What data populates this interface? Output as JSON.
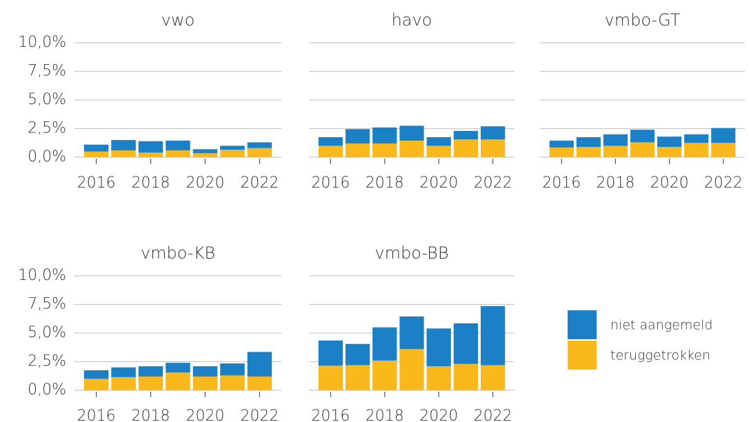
{
  "chart_data": [
    {
      "type": "bar",
      "stacked": true,
      "title": "vwo",
      "x": [
        2016,
        2017,
        2018,
        2019,
        2020,
        2021,
        2022
      ],
      "series": [
        {
          "name": "teruggetrokken",
          "color": "#f9b81b",
          "values": [
            0.5,
            0.6,
            0.4,
            0.6,
            0.35,
            0.65,
            0.8
          ]
        },
        {
          "name": "niet aangemeld",
          "color": "#1b80c6",
          "values": [
            0.6,
            0.9,
            1.0,
            0.85,
            0.35,
            0.35,
            0.5
          ]
        }
      ],
      "xlim": [
        2015.2,
        2022.8
      ],
      "xticks": [
        2016,
        2018,
        2020,
        2022
      ],
      "ylim": [
        0,
        10
      ],
      "yticks": [
        {
          "value": 0,
          "label": "0,0%"
        },
        {
          "value": 2.5,
          "label": "2,5%"
        },
        {
          "value": 5,
          "label": "5,0%"
        },
        {
          "value": 7.5,
          "label": "7,5%"
        },
        {
          "value": 10,
          "label": "10,0%"
        }
      ],
      "grid": true
    },
    {
      "type": "bar",
      "stacked": true,
      "title": "havo",
      "x": [
        2016,
        2017,
        2018,
        2019,
        2020,
        2021,
        2022
      ],
      "series": [
        {
          "name": "teruggetrokken",
          "color": "#f9b81b",
          "values": [
            1.0,
            1.2,
            1.2,
            1.45,
            1.0,
            1.55,
            1.55
          ]
        },
        {
          "name": "niet aangemeld",
          "color": "#1b80c6",
          "values": [
            0.75,
            1.25,
            1.4,
            1.3,
            0.75,
            0.75,
            1.15
          ]
        }
      ],
      "xlim": [
        2015.2,
        2022.8
      ],
      "xticks": [
        2016,
        2018,
        2020,
        2022
      ],
      "ylim": [
        0,
        10
      ],
      "yticks": [
        0,
        2.5,
        5,
        7.5,
        10
      ],
      "grid": true
    },
    {
      "type": "bar",
      "stacked": true,
      "title": "vmbo-GT",
      "x": [
        2016,
        2017,
        2018,
        2019,
        2020,
        2021,
        2022
      ],
      "series": [
        {
          "name": "teruggetrokken",
          "color": "#f9b81b",
          "values": [
            0.85,
            0.9,
            1.0,
            1.3,
            0.9,
            1.25,
            1.25
          ]
        },
        {
          "name": "niet aangemeld",
          "color": "#1b80c6",
          "values": [
            0.6,
            0.85,
            1.0,
            1.1,
            0.9,
            0.75,
            1.3
          ]
        }
      ],
      "xlim": [
        2015.2,
        2022.8
      ],
      "xticks": [
        2016,
        2018,
        2020,
        2022
      ],
      "ylim": [
        0,
        10
      ],
      "yticks": [
        0,
        2.5,
        5,
        7.5,
        10
      ],
      "grid": true
    },
    {
      "type": "bar",
      "stacked": true,
      "title": "vmbo-KB",
      "x": [
        2016,
        2017,
        2018,
        2019,
        2020,
        2021,
        2022
      ],
      "series": [
        {
          "name": "teruggetrokken",
          "color": "#f9b81b",
          "values": [
            1.0,
            1.15,
            1.2,
            1.55,
            1.2,
            1.3,
            1.2
          ]
        },
        {
          "name": "niet aangemeld",
          "color": "#1b80c6",
          "values": [
            0.75,
            0.85,
            0.9,
            0.85,
            0.9,
            1.05,
            2.15
          ]
        }
      ],
      "xlim": [
        2015.2,
        2022.8
      ],
      "xticks": [
        2016,
        2018,
        2020,
        2022
      ],
      "ylim": [
        0,
        10
      ],
      "yticks": [
        {
          "value": 0,
          "label": "0,0%"
        },
        {
          "value": 2.5,
          "label": "2,5%"
        },
        {
          "value": 5,
          "label": "5,0%"
        },
        {
          "value": 7.5,
          "label": "7,5%"
        },
        {
          "value": 10,
          "label": "10,0%"
        }
      ],
      "grid": true
    },
    {
      "type": "bar",
      "stacked": true,
      "title": "vmbo-BB",
      "x": [
        2016,
        2017,
        2018,
        2019,
        2020,
        2021,
        2022
      ],
      "series": [
        {
          "name": "teruggetrokken",
          "color": "#f9b81b",
          "values": [
            2.15,
            2.2,
            2.6,
            3.6,
            2.1,
            2.3,
            2.2
          ]
        },
        {
          "name": "niet aangemeld",
          "color": "#1b80c6",
          "values": [
            2.2,
            1.85,
            2.9,
            2.85,
            3.3,
            3.55,
            5.15
          ]
        }
      ],
      "xlim": [
        2015.2,
        2022.8
      ],
      "xticks": [
        2016,
        2018,
        2020,
        2022
      ],
      "ylim": [
        0,
        10
      ],
      "yticks": [
        0,
        2.5,
        5,
        7.5,
        10
      ],
      "grid": true,
      "legend": "right"
    }
  ]
}
